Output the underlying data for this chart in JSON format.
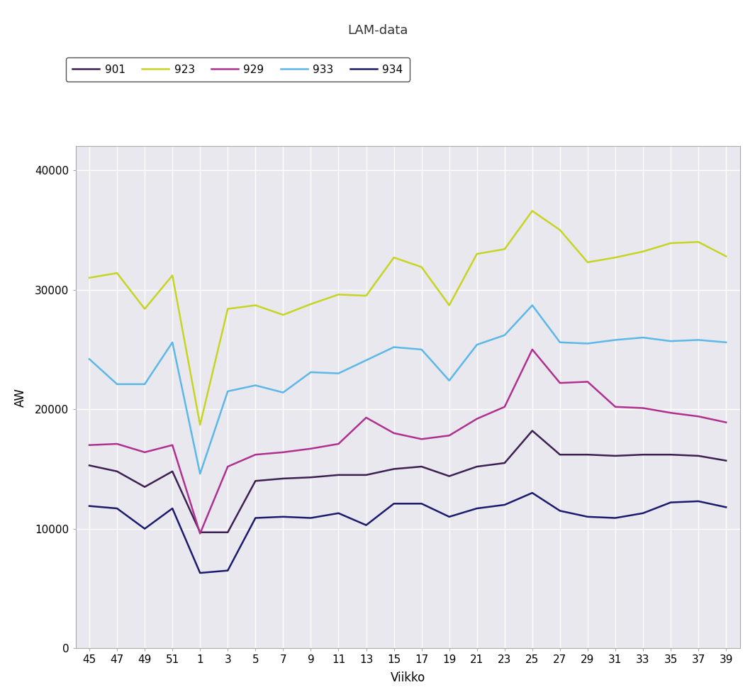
{
  "title": "LAM-data",
  "xlabel": "Viikko",
  "ylabel": "AW",
  "x_labels": [
    "45",
    "47",
    "49",
    "51",
    "1",
    "3",
    "5",
    "7",
    "9",
    "11",
    "13",
    "15",
    "17",
    "19",
    "21",
    "23",
    "25",
    "27",
    "29",
    "31",
    "33",
    "35",
    "37",
    "39"
  ],
  "ylim": [
    0,
    42000
  ],
  "yticks": [
    0,
    10000,
    20000,
    30000,
    40000
  ],
  "ytick_labels": [
    "0",
    "10000",
    "20000",
    "30000",
    "40000"
  ],
  "series": [
    {
      "label": "901",
      "color": "#3D1F52",
      "linewidth": 1.8,
      "values": [
        15300,
        14800,
        13500,
        14800,
        9700,
        9700,
        14000,
        14200,
        14300,
        14500,
        14500,
        15000,
        15200,
        14400,
        15200,
        15500,
        18200,
        16200,
        16200,
        16100,
        16200,
        16200,
        16100,
        15700
      ]
    },
    {
      "label": "923",
      "color": "#C8D422",
      "linewidth": 1.8,
      "values": [
        31000,
        31400,
        28400,
        31200,
        18700,
        28400,
        28700,
        27900,
        28800,
        29600,
        29500,
        32700,
        31900,
        28700,
        33000,
        33400,
        36600,
        35000,
        32300,
        32700,
        33200,
        33900,
        34000,
        32800
      ]
    },
    {
      "label": "929",
      "color": "#B03090",
      "linewidth": 1.8,
      "values": [
        17000,
        17100,
        16400,
        17000,
        9600,
        15200,
        16200,
        16400,
        16700,
        17100,
        19300,
        18000,
        17500,
        17800,
        19200,
        20200,
        25000,
        22200,
        22300,
        20200,
        20100,
        19700,
        19400,
        18900
      ]
    },
    {
      "label": "933",
      "color": "#5BB8E8",
      "linewidth": 1.8,
      "values": [
        24200,
        22100,
        22100,
        25600,
        14600,
        21500,
        22000,
        21400,
        23100,
        23000,
        24100,
        25200,
        25000,
        22400,
        25400,
        26200,
        28700,
        25600,
        25500,
        25800,
        26000,
        25700,
        25800,
        25600
      ]
    },
    {
      "label": "934",
      "color": "#1A1A6E",
      "linewidth": 1.8,
      "values": [
        11900,
        11700,
        10000,
        11700,
        6300,
        6500,
        10900,
        11000,
        10900,
        11300,
        10300,
        12100,
        12100,
        11000,
        11700,
        12000,
        13000,
        11500,
        11000,
        10900,
        11300,
        12200,
        12300,
        11800
      ]
    }
  ],
  "background_color": "#E8E8EE",
  "plot_bg_color": "#E8E8EE",
  "fig_bg_color": "#FFFFFF",
  "grid_color": "#FFFFFF",
  "legend_border_color": "#555555",
  "title_fontsize": 13,
  "axis_label_fontsize": 12,
  "tick_fontsize": 11,
  "legend_fontsize": 11
}
